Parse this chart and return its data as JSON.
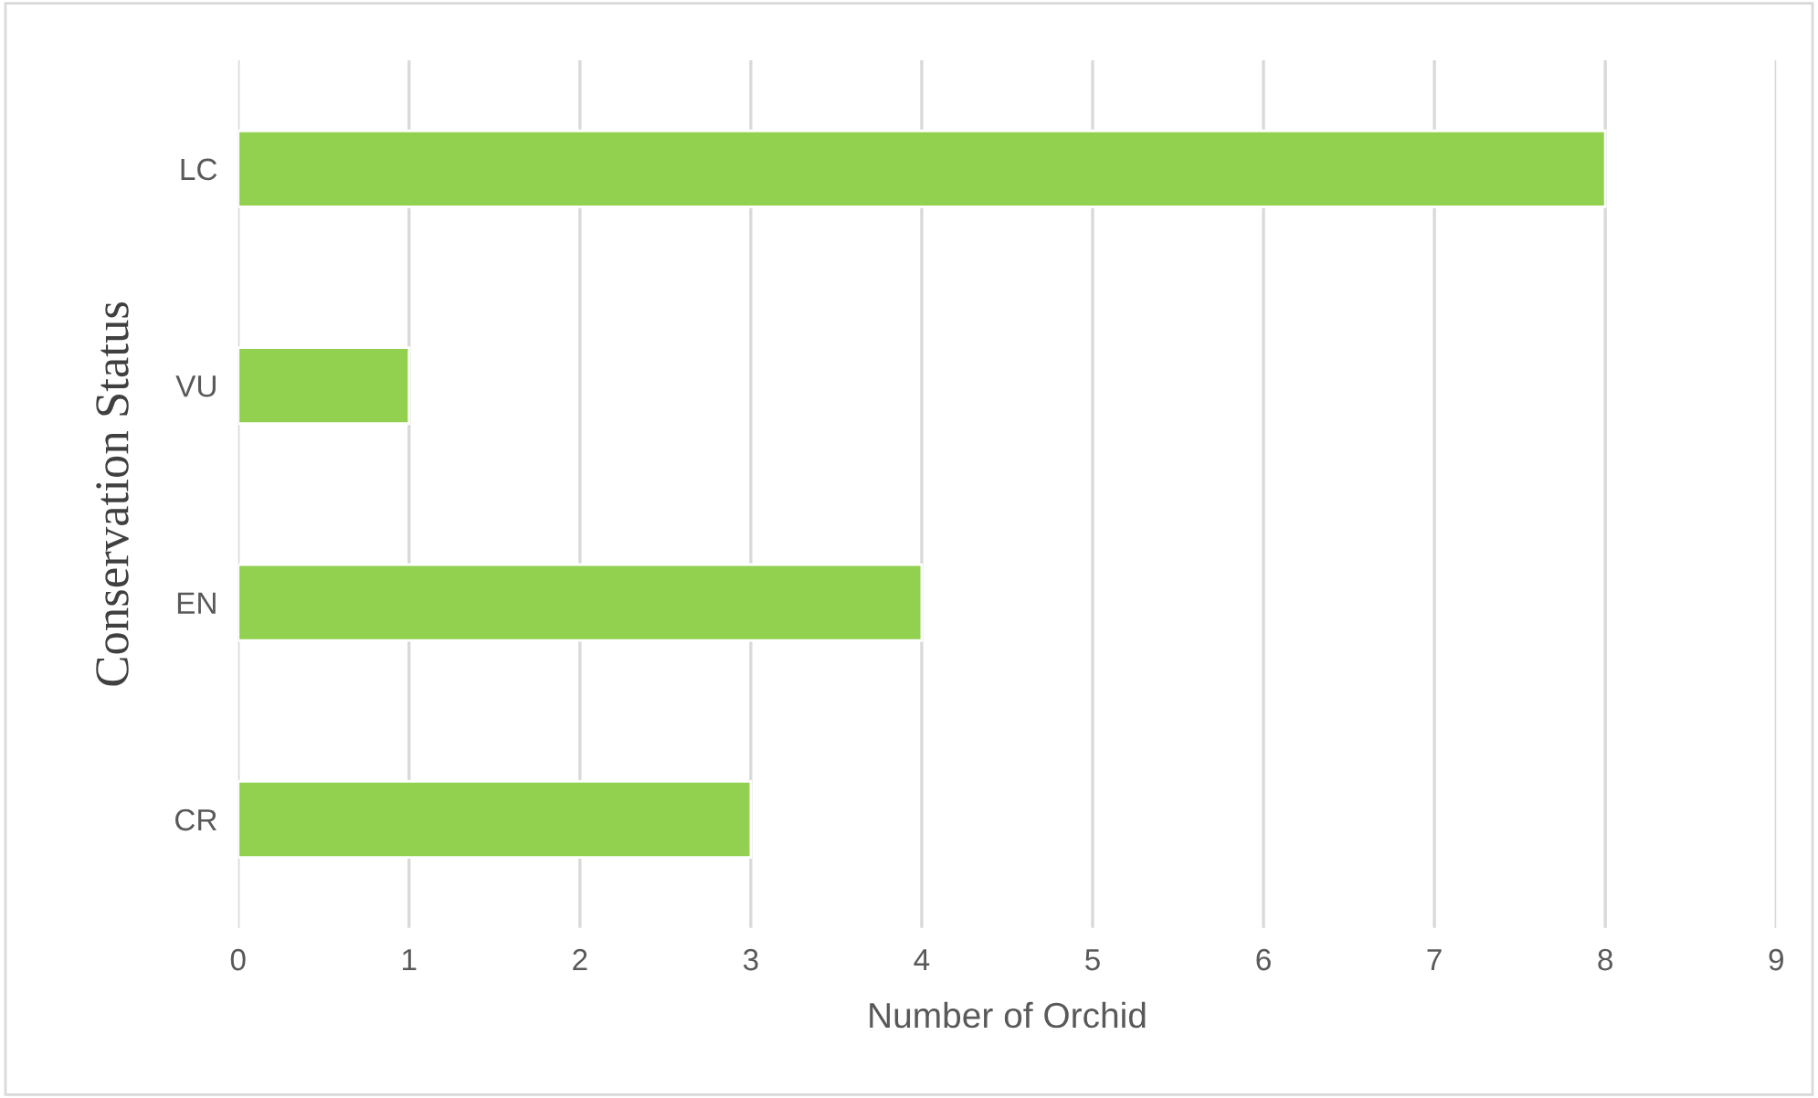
{
  "chart_data": {
    "type": "bar",
    "orientation": "horizontal",
    "xlabel": "Number of Orchid",
    "ylabel": "Conservation Status",
    "categories": [
      "LC",
      "VU",
      "EN",
      "CR"
    ],
    "values": [
      8,
      1,
      4,
      3
    ],
    "color": "#92d050",
    "xlim": [
      0,
      9
    ],
    "xticks": [
      0,
      1,
      2,
      3,
      4,
      5,
      6,
      7,
      8,
      9
    ],
    "grid": "x"
  }
}
